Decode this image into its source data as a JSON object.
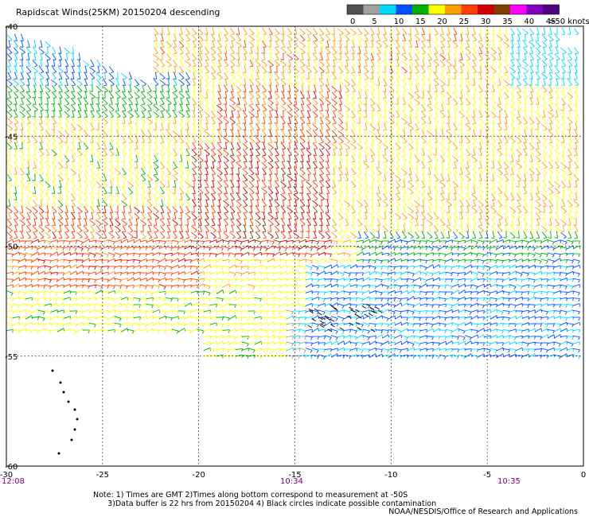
{
  "title": "Rapidscat Winds(25KM) 20150204 descending",
  "legend": {
    "unit": ">50 knots",
    "labels": [
      "0",
      "5",
      "10",
      "15",
      "20",
      "25",
      "30",
      "35",
      "40",
      "45"
    ],
    "colors": [
      "#505050",
      "#a0a0a0",
      "#00d8ff",
      "#0050ff",
      "#00b000",
      "#ffff00",
      "#ffa000",
      "#ff4000",
      "#d00000",
      "#804000",
      "#ff00ff",
      "#8000c0",
      "#500080"
    ]
  },
  "axes": {
    "x_ticks": [
      "-30",
      "-25",
      "-20",
      "-15",
      "-10",
      "-5",
      "0"
    ],
    "y_ticks": [
      "-40",
      "-45",
      "-50",
      "-55",
      "-60"
    ]
  },
  "times": [
    "12:08",
    "10:34",
    "10:35"
  ],
  "notes": [
    "Note: 1) Times are GMT 2)Times along bottom correspond to measurement at -50S",
    "      3)Data buffer is 22 hrs from 20150204 4) Black circles indicate possible contamination"
  ],
  "credit": "NOAA/NESDIS/Office of Research and Applications"
}
